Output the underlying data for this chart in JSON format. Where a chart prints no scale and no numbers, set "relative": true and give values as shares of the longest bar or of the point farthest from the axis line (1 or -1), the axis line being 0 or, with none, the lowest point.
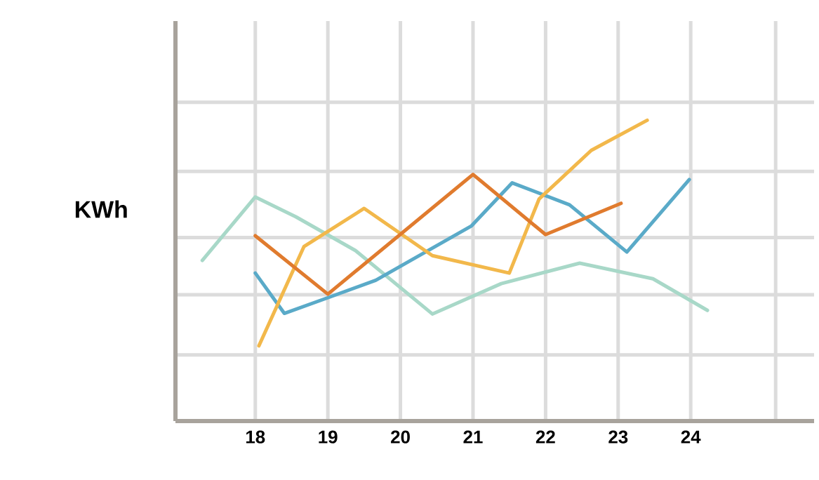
{
  "chart_data": {
    "type": "line",
    "ylabel": "KWh",
    "relative": true,
    "grid": true,
    "xlim": [
      16.9,
      25.7
    ],
    "xticks": [
      18,
      19,
      20,
      21,
      22,
      23,
      24,
      {
        "value": 25.17,
        "label": null
      }
    ],
    "series": [
      {
        "color": "#a8d8c8",
        "x": [
          17.27,
          18,
          18.56,
          19.38,
          20.44,
          21.39,
          22.47,
          23.48,
          24.23
        ],
        "values": [
          0.534,
          0.745,
          0.679,
          0.567,
          0.356,
          0.457,
          0.525,
          0.473,
          0.368
        ]
      },
      {
        "color": "#5aaac8",
        "x": [
          18,
          18.4,
          19,
          19.66,
          20.98,
          21.54,
          22.33,
          23.12,
          23.98
        ],
        "values": [
          0.492,
          0.358,
          0.41,
          0.468,
          0.649,
          0.792,
          0.719,
          0.562,
          0.803
        ]
      },
      {
        "color": "#f2b84b",
        "x": [
          18.05,
          18.67,
          19.5,
          20.44,
          21.5,
          21.91,
          22.63,
          23.4
        ],
        "values": [
          0.25,
          0.58,
          0.707,
          0.55,
          0.492,
          0.738,
          0.9,
          1.0
        ]
      },
      {
        "color": "#e07b2e",
        "x": [
          18,
          19,
          21,
          22,
          23.04
        ],
        "values": [
          0.616,
          0.422,
          0.82,
          0.62,
          0.724
        ]
      }
    ]
  }
}
